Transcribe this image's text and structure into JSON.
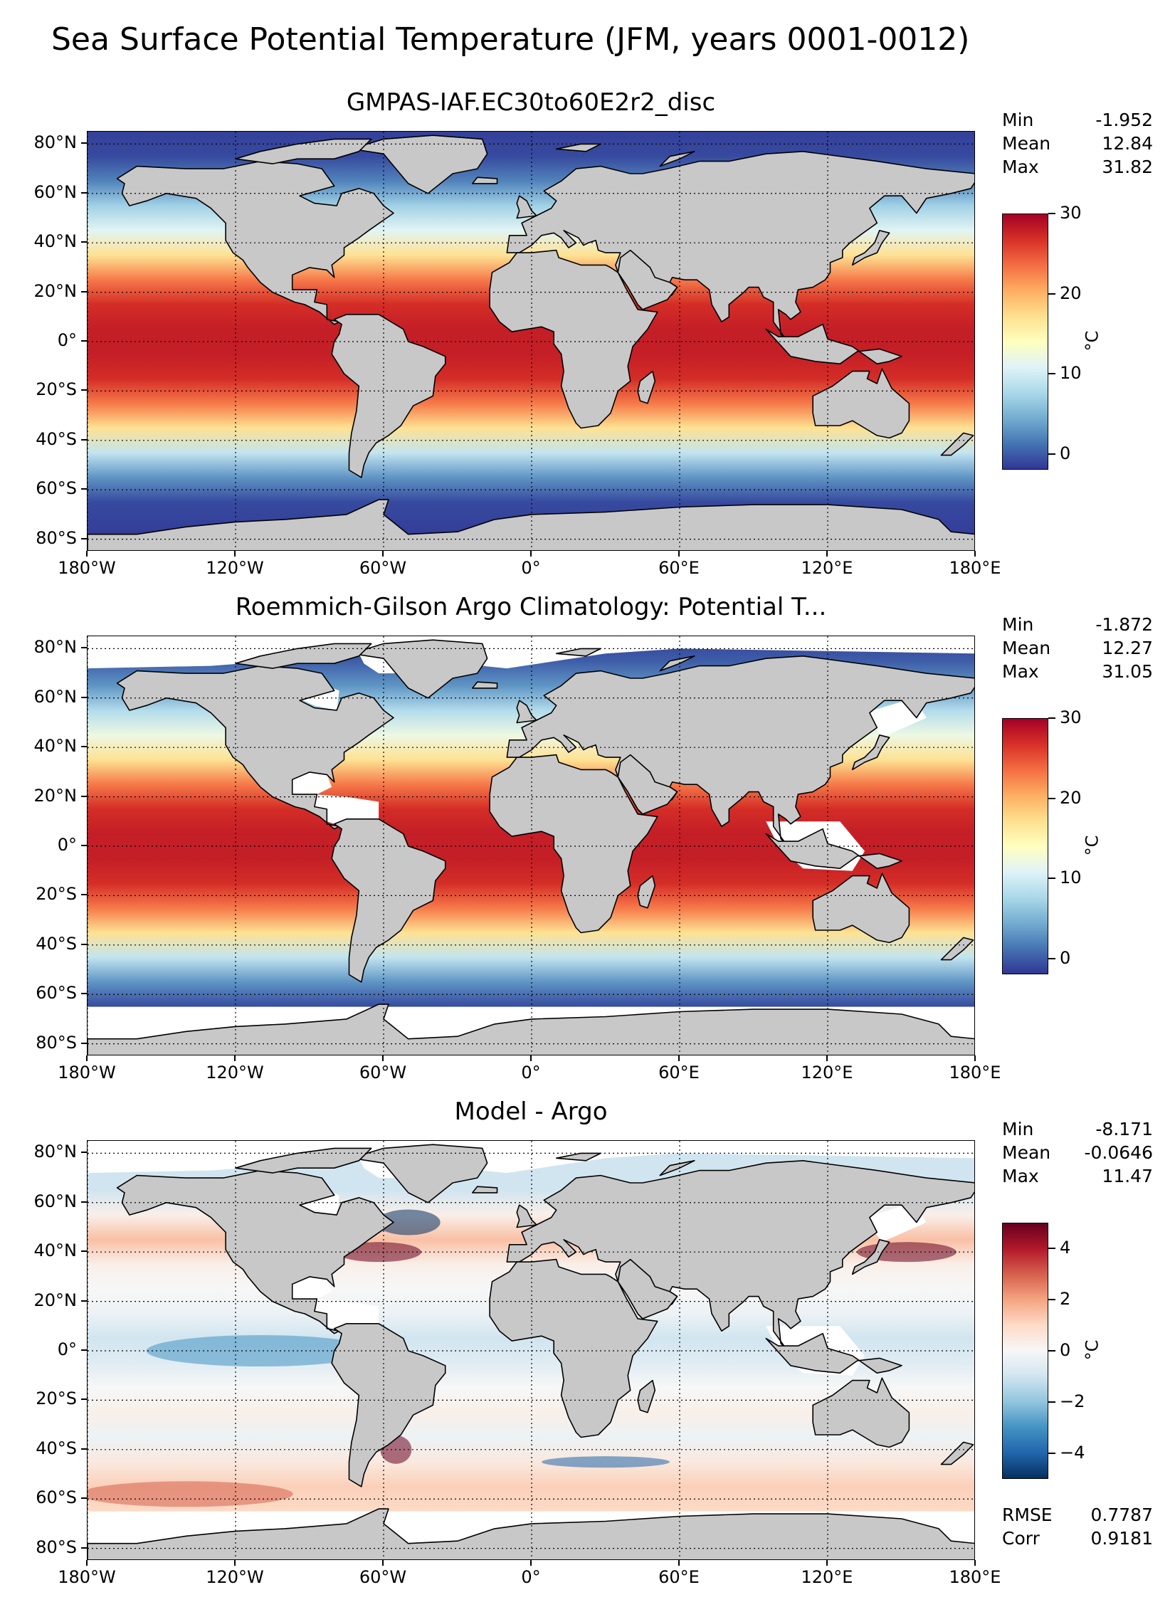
{
  "figure": {
    "suptitle": "Sea Surface Potential Temperature (JFM, years 0001-0012)"
  },
  "axes": {
    "lat_ticks": [
      "80°N",
      "60°N",
      "40°N",
      "20°N",
      "0°",
      "20°S",
      "40°S",
      "60°S",
      "80°S"
    ],
    "lat_values": [
      80,
      60,
      40,
      20,
      0,
      -20,
      -40,
      -60,
      -80
    ],
    "lon_ticks": [
      "180°W",
      "120°W",
      "60°W",
      "0°",
      "60°E",
      "120°E",
      "180°E"
    ],
    "lon_values": [
      -180,
      -120,
      -60,
      0,
      60,
      120,
      180
    ],
    "lat_range": [
      -85,
      85
    ],
    "lon_range": [
      -180,
      180
    ],
    "grid": true
  },
  "panels": [
    {
      "title": "GMPAS-IAF.EC30to60E2r2_disc",
      "stats": [
        {
          "label": "Min",
          "value": "-1.952"
        },
        {
          "label": "Mean",
          "value": "12.84"
        },
        {
          "label": "Max",
          "value": "31.82"
        }
      ],
      "colorbar": {
        "label": "°C",
        "ticks": [
          "0",
          "10",
          "20",
          "30"
        ],
        "tick_values": [
          0,
          10,
          20,
          30
        ],
        "range": [
          -2,
          30
        ],
        "cmap": "RdYlBu_r"
      }
    },
    {
      "title": "Roemmich-Gilson Argo Climatology: Potential T...",
      "stats": [
        {
          "label": "Min",
          "value": "-1.872"
        },
        {
          "label": "Mean",
          "value": "12.27"
        },
        {
          "label": "Max",
          "value": "31.05"
        }
      ],
      "colorbar": {
        "label": "°C",
        "ticks": [
          "0",
          "10",
          "20",
          "30"
        ],
        "tick_values": [
          0,
          10,
          20,
          30
        ],
        "range": [
          -2,
          30
        ],
        "cmap": "RdYlBu_r"
      }
    },
    {
      "title": "Model - Argo",
      "stats": [
        {
          "label": "Min",
          "value": "-8.171"
        },
        {
          "label": "Mean",
          "value": "-0.0646"
        },
        {
          "label": "Max",
          "value": "11.47"
        }
      ],
      "extra_stats": [
        {
          "label": "RMSE",
          "value": "0.7787"
        },
        {
          "label": "Corr",
          "value": "0.9181"
        }
      ],
      "colorbar": {
        "label": "°C",
        "ticks": [
          "4",
          "2",
          "0",
          "−2",
          "−4"
        ],
        "tick_values": [
          4,
          2,
          0,
          -2,
          -4
        ],
        "range": [
          -5,
          5
        ],
        "cmap": "RdBu_r"
      }
    }
  ],
  "chart_data": [
    {
      "type": "heatmap",
      "title": "GMPAS-IAF.EC30to60E2r2_disc",
      "units": "°C",
      "color_range": [
        -2,
        30
      ],
      "zonal_profile": {
        "lat": [
          85,
          75,
          65,
          55,
          45,
          35,
          25,
          15,
          5,
          -5,
          -15,
          -25,
          -35,
          -45,
          -55,
          -65,
          -75,
          -85
        ],
        "value": [
          -1.5,
          -1,
          2,
          7,
          11,
          17,
          23,
          27,
          28,
          28,
          27,
          23,
          17,
          9,
          3,
          -1,
          -1.5,
          -1.9
        ]
      },
      "stats": {
        "min": -1.952,
        "mean": 12.84,
        "max": 31.82
      }
    },
    {
      "type": "heatmap",
      "title": "Roemmich-Gilson Argo Climatology: Potential T...",
      "units": "°C",
      "color_range": [
        -2,
        30
      ],
      "zonal_profile": {
        "lat": [
          85,
          75,
          65,
          55,
          45,
          35,
          25,
          15,
          5,
          -5,
          -15,
          -25,
          -35,
          -45,
          -55,
          -65
        ],
        "value": [
          -1.5,
          0,
          3,
          8,
          12,
          17,
          23,
          27,
          28,
          28,
          27,
          23,
          17,
          9,
          3,
          -1
        ]
      },
      "no_data_south_of_lat": -65,
      "stats": {
        "min": -1.872,
        "mean": 12.27,
        "max": 31.05
      }
    },
    {
      "type": "heatmap",
      "title": "Model - Argo",
      "units": "°C",
      "color_range": [
        -5,
        5
      ],
      "zonal_profile": {
        "lat": [
          65,
          55,
          45,
          35,
          25,
          15,
          5,
          -5,
          -15,
          -25,
          -35,
          -45,
          -55,
          -65
        ],
        "value": [
          -1,
          0.3,
          1.5,
          0.3,
          0,
          -0.3,
          -1,
          -0.6,
          0,
          0.3,
          -0.3,
          0.5,
          1.2,
          1
        ]
      },
      "no_data_south_of_lat": -65,
      "stats": {
        "min": -8.171,
        "mean": -0.0646,
        "max": 11.47,
        "rmse": 0.7787,
        "corr": 0.9181
      }
    }
  ]
}
